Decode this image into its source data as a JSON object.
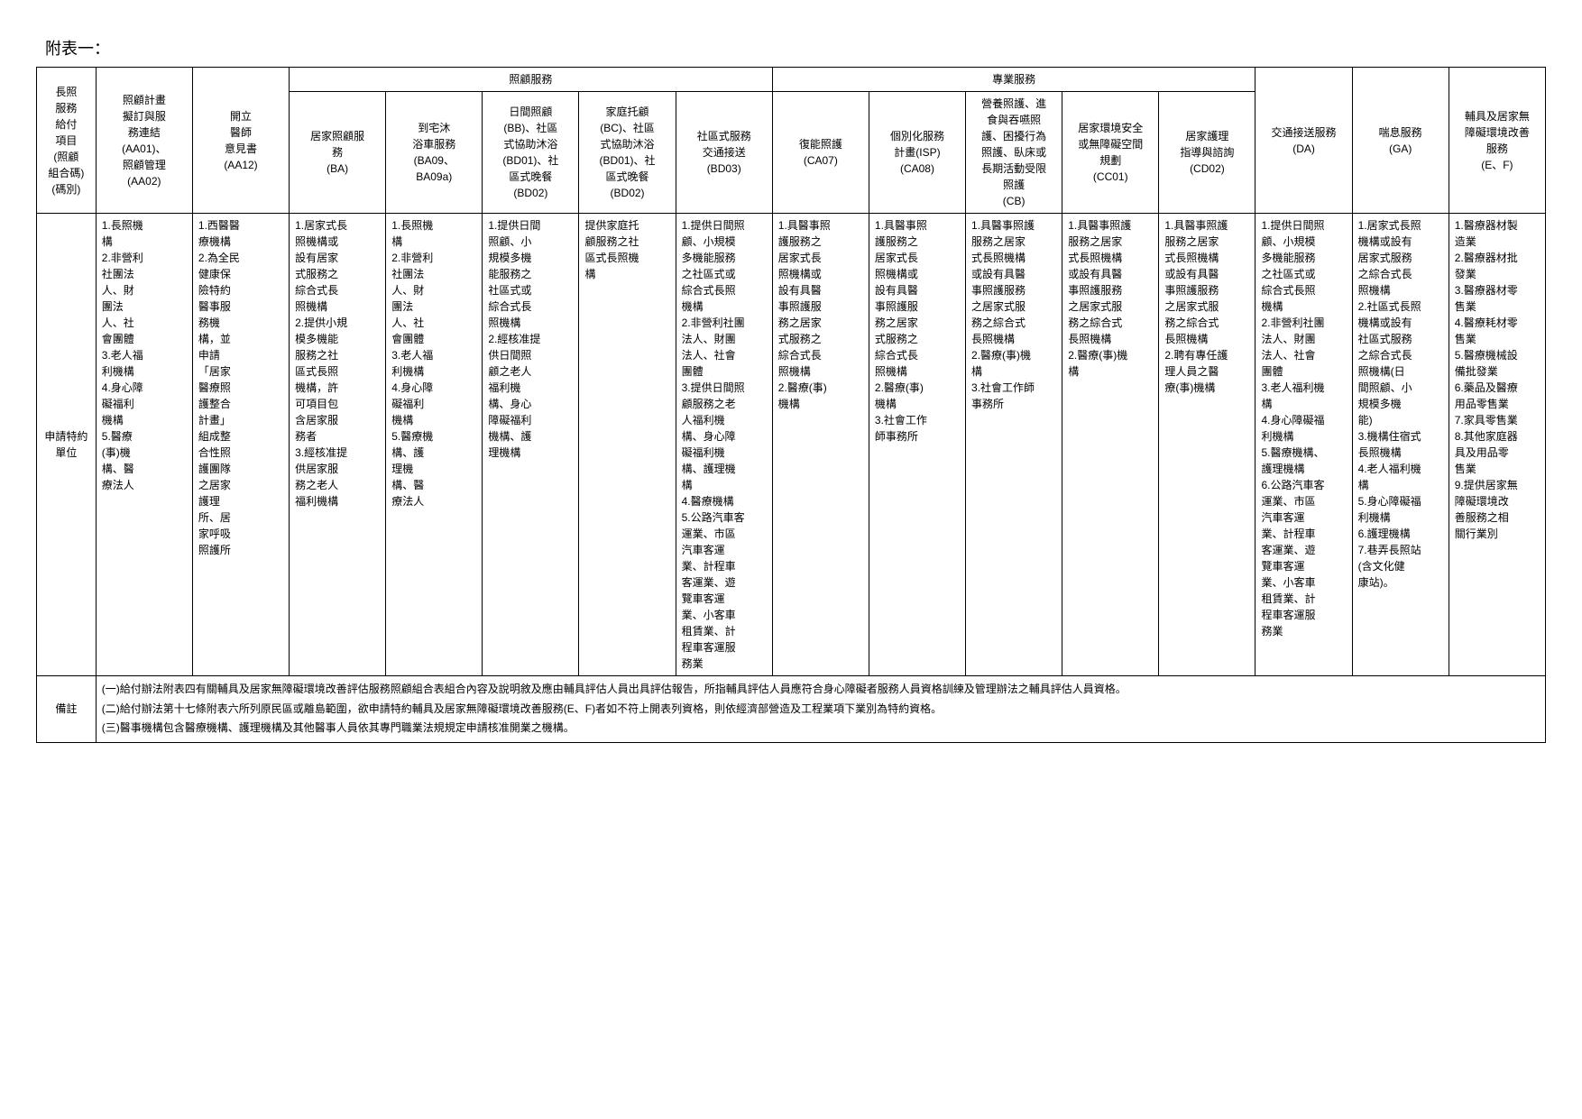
{
  "title": "附表一：",
  "group_headers": {
    "care_services": "照顧服務",
    "professional_services": "專業服務"
  },
  "row_headers": {
    "code_group": "長照\n服務\n給付\n項目\n(照顧\n組合碼)\n(碼別)",
    "apply_unit": "申請特約\n單位",
    "remarks": "備註"
  },
  "col_headers": {
    "c1": "照顧計畫\n擬訂與服\n務連結\n(AA01)、\n照顧管理\n(AA02)",
    "c2": "開立\n醫師\n意見書\n(AA12)",
    "c3": "居家照顧服\n務\n(BA)",
    "c4": "到宅沐\n浴車服務\n(BA09、\nBA09a)",
    "c5": "日間照顧\n(BB)、社區\n式協助沐浴\n(BD01)、社\n區式晚餐\n(BD02)",
    "c6": "家庭托顧\n(BC)、社區\n式協助沐浴\n(BD01)、社\n區式晚餐\n(BD02)",
    "c7": "社區式服務\n交通接送\n(BD03)",
    "c8": "復能照護\n(CA07)",
    "c9": "個別化服務\n計畫(ISP)\n(CA08)",
    "c10": "營養照護、進\n食與吞嚥照\n護、困擾行為\n照護、臥床或\n長期活動受限\n照護\n(CB)",
    "c11": "居家環境安全\n或無障礙空間\n規劃\n(CC01)",
    "c12": "居家護理\n指導與諮詢\n(CD02)",
    "c13": "交通接送服務\n(DA)",
    "c14": "喘息服務\n(GA)",
    "c15": "輔具及居家無\n障礙環境改善\n服務\n(E、F)"
  },
  "cells": {
    "c1": "1.長照機\n構\n2.非營利\n社團法\n人、財\n團法\n人、社\n會團體\n3.老人福\n利機構\n4.身心障\n礙福利\n機構\n5.醫療\n(事)機\n構、醫\n療法人",
    "c2": "1.西醫醫\n療機構\n2.為全民\n健康保\n險特約\n醫事服\n務機\n構，並\n申請\n「居家\n醫療照\n護整合\n計畫」\n組成整\n合性照\n護團隊\n之居家\n護理\n所、居\n家呼吸\n照護所",
    "c3": "1.居家式長\n照機構或\n設有居家\n式服務之\n綜合式長\n照機構\n2.提供小規\n模多機能\n服務之社\n區式長照\n機構，許\n可項目包\n含居家服\n務者\n3.經核准提\n供居家服\n務之老人\n福利機構",
    "c4": "1.長照機\n構\n2.非營利\n社團法\n人、財\n團法\n人、社\n會團體\n3.老人福\n利機構\n4.身心障\n礙福利\n機構\n5.醫療機\n構、護\n理機\n構、醫\n療法人",
    "c5": "1.提供日間\n照顧、小\n規模多機\n能服務之\n社區式或\n綜合式長\n照機構\n2.經核准提\n供日間照\n顧之老人\n福利機\n構、身心\n障礙福利\n機構、護\n理機構",
    "c6": "提供家庭托\n顧服務之社\n區式長照機\n構",
    "c7": "1.提供日間照\n顧、小規模\n多機能服務\n之社區式或\n綜合式長照\n機構\n2.非營利社團\n法人、財團\n法人、社會\n團體\n3.提供日間照\n顧服務之老\n人福利機\n構、身心障\n礙福利機\n構、護理機\n構\n4.醫療機構\n5.公路汽車客\n運業、市區\n汽車客運\n業、計程車\n客運業、遊\n覽車客運\n業、小客車\n租賃業、計\n程車客運服\n務業",
    "c8": "1.具醫事照\n護服務之\n居家式長\n照機構或\n設有具醫\n事照護服\n務之居家\n式服務之\n綜合式長\n照機構\n2.醫療(事)\n機構",
    "c9": "1.具醫事照\n護服務之\n居家式長\n照機構或\n設有具醫\n事照護服\n務之居家\n式服務之\n綜合式長\n照機構\n2.醫療(事)\n機構\n3.社會工作\n師事務所",
    "c10": "1.具醫事照護\n服務之居家\n式長照機構\n或設有具醫\n事照護服務\n之居家式服\n務之綜合式\n長照機構\n2.醫療(事)機\n構\n3.社會工作師\n事務所",
    "c11": "1.具醫事照護\n服務之居家\n式長照機構\n或設有具醫\n事照護服務\n之居家式服\n務之綜合式\n長照機構\n2.醫療(事)機\n構",
    "c12": "1.具醫事照護\n服務之居家\n式長照機構\n或設有具醫\n事照護服務\n之居家式服\n務之綜合式\n長照機構\n2.聘有專任護\n理人員之醫\n療(事)機構",
    "c13": "1.提供日間照\n顧、小規模\n多機能服務\n之社區式或\n綜合式長照\n機構\n2.非營利社團\n法人、財團\n法人、社會\n團體\n3.老人福利機\n構\n4.身心障礙福\n利機構\n5.醫療機構、\n護理機構\n6.公路汽車客\n運業、市區\n汽車客運\n業、計程車\n客運業、遊\n覽車客運\n業、小客車\n租賃業、計\n程車客運服\n務業",
    "c14": "1.居家式長照\n機構或設有\n居家式服務\n之綜合式長\n照機構\n2.社區式長照\n機構或設有\n社區式服務\n之綜合式長\n照機構(日\n間照顧、小\n規模多機\n能)\n3.機構住宿式\n長照機構\n4.老人福利機\n構\n5.身心障礙福\n利機構\n6.護理機構\n7.巷弄長照站\n(含文化健\n康站)。",
    "c15": "1.醫療器材製\n造業\n2.醫療器材批\n發業\n3.醫療器材零\n售業\n4.醫療耗材零\n售業\n5.醫療機械設\n備批發業\n6.藥品及醫療\n用品零售業\n7.家具零售業\n8.其他家庭器\n具及用品零\n售業\n9.提供居家無\n障礙環境改\n善服務之相\n關行業別"
  },
  "remarks": {
    "line1": "(一)給付辦法附表四有關輔具及居家無障礙環境改善評估服務照顧組合表組合內容及說明敘及應由輔具評估人員出具評估報告，所指輔具評估人員應符合身心障礙者服務人員資格訓練及管理辦法之輔具評估人員資格。",
    "line2": "(二)給付辦法第十七條附表六所列原民區或離島範圍，欲申請特約輔具及居家無障礙環境改善服務(E、F)者如不符上開表列資格，則依經濟部營造及工程業項下業別為特約資格。",
    "line3": "(三)醫事機構包含醫療機構、護理機構及其他醫事人員依其專門職業法規規定申請核准開業之機構。"
  }
}
